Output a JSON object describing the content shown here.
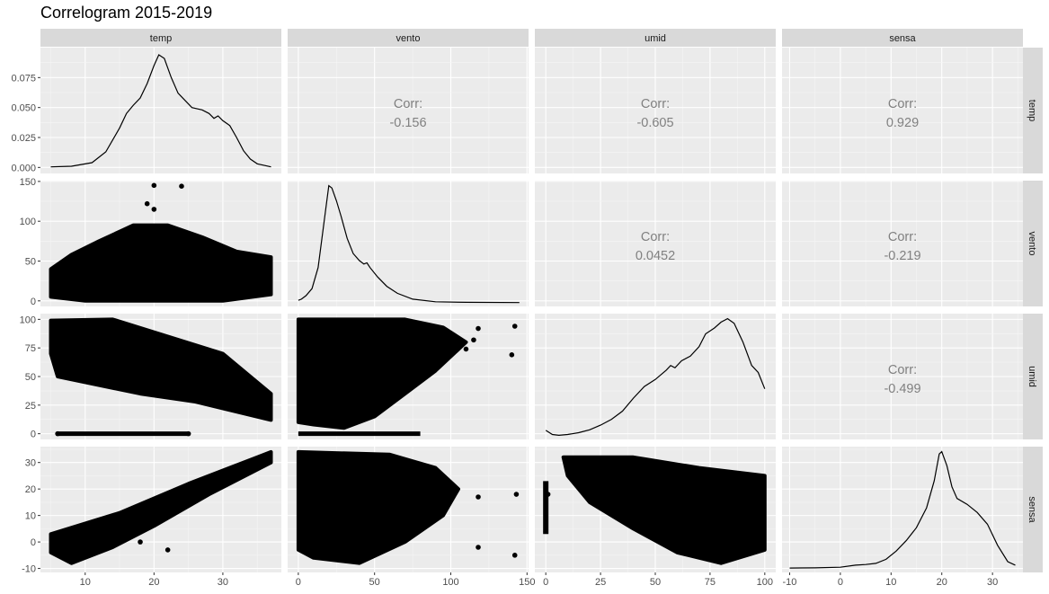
{
  "chart_data": {
    "type": "scatter-matrix",
    "title": "Correlogram 2015-2019",
    "variables": [
      "temp",
      "vento",
      "umid",
      "sensa"
    ],
    "axes": {
      "temp": {
        "range": [
          3.5,
          38.5
        ],
        "ticks": [
          10,
          20,
          30
        ],
        "tick_labels": [
          "10",
          "20",
          "30"
        ]
      },
      "vento": {
        "range": [
          -7,
          151
        ],
        "ticks": [
          0,
          50,
          100,
          150
        ],
        "tick_labels": [
          "0",
          "50",
          "100",
          "150"
        ]
      },
      "umid": {
        "range": [
          -5,
          105
        ],
        "ticks": [
          0,
          25,
          50,
          75,
          100
        ],
        "tick_labels": [
          "0",
          "25",
          "50",
          "75",
          "100"
        ]
      },
      "sensa": {
        "range": [
          -11.5,
          36
        ],
        "ticks": [
          -10,
          0,
          10,
          20,
          30
        ],
        "tick_labels": [
          "-10",
          "0",
          "10",
          "20",
          "30"
        ]
      }
    },
    "density_axis": {
      "range": [
        -0.005,
        0.1
      ],
      "ticks": [
        0,
        0.025,
        0.05,
        0.075
      ],
      "tick_labels": [
        "0.000",
        "0.025",
        "0.050",
        "0.075"
      ]
    },
    "correlations": [
      {
        "x": "vento",
        "y": "temp",
        "label": "Corr:",
        "value": "-0.156"
      },
      {
        "x": "umid",
        "y": "temp",
        "label": "Corr:",
        "value": "-0.605"
      },
      {
        "x": "sensa",
        "y": "temp",
        "label": "Corr:",
        "value": "0.929"
      },
      {
        "x": "umid",
        "y": "vento",
        "label": "Corr:",
        "value": "0.0452"
      },
      {
        "x": "sensa",
        "y": "vento",
        "label": "Corr:",
        "value": "-0.219"
      },
      {
        "x": "sensa",
        "y": "umid",
        "label": "Corr:",
        "value": "-0.499"
      }
    ],
    "densities": {
      "temp": [
        [
          5,
          0.0005
        ],
        [
          8,
          0.001
        ],
        [
          11,
          0.004
        ],
        [
          13,
          0.013
        ],
        [
          14,
          0.023
        ],
        [
          15,
          0.033
        ],
        [
          16,
          0.045
        ],
        [
          17,
          0.052
        ],
        [
          18,
          0.058
        ],
        [
          19,
          0.07
        ],
        [
          20,
          0.085
        ],
        [
          20.7,
          0.094
        ],
        [
          21.5,
          0.091
        ],
        [
          22.5,
          0.075
        ],
        [
          23.5,
          0.062
        ],
        [
          24.5,
          0.056
        ],
        [
          25.5,
          0.05
        ],
        [
          27,
          0.048
        ],
        [
          28,
          0.045
        ],
        [
          28.7,
          0.041
        ],
        [
          29.3,
          0.043
        ],
        [
          30,
          0.039
        ],
        [
          31,
          0.035
        ],
        [
          32,
          0.025
        ],
        [
          33,
          0.014
        ],
        [
          34,
          0.007
        ],
        [
          35,
          0.003
        ],
        [
          37,
          0.0005
        ]
      ],
      "vento": [
        [
          0,
          0.02
        ],
        [
          2,
          0.03
        ],
        [
          5,
          0.06
        ],
        [
          9,
          0.12
        ],
        [
          13,
          0.3
        ],
        [
          16,
          0.6
        ],
        [
          18,
          0.8
        ],
        [
          20,
          1.0
        ],
        [
          22,
          0.98
        ],
        [
          25,
          0.87
        ],
        [
          28,
          0.74
        ],
        [
          32,
          0.55
        ],
        [
          36,
          0.42
        ],
        [
          40,
          0.36
        ],
        [
          43,
          0.33
        ],
        [
          45,
          0.34
        ],
        [
          47,
          0.3
        ],
        [
          52,
          0.22
        ],
        [
          58,
          0.14
        ],
        [
          65,
          0.08
        ],
        [
          75,
          0.03
        ],
        [
          90,
          0.008
        ],
        [
          110,
          0.003
        ],
        [
          145,
          0.001
        ]
      ],
      "umid": [
        [
          0,
          0.045
        ],
        [
          3,
          0.01
        ],
        [
          6,
          0.003
        ],
        [
          10,
          0.01
        ],
        [
          15,
          0.025
        ],
        [
          20,
          0.05
        ],
        [
          25,
          0.09
        ],
        [
          30,
          0.14
        ],
        [
          35,
          0.21
        ],
        [
          40,
          0.32
        ],
        [
          45,
          0.42
        ],
        [
          50,
          0.48
        ],
        [
          55,
          0.56
        ],
        [
          57,
          0.6
        ],
        [
          59,
          0.58
        ],
        [
          62,
          0.64
        ],
        [
          66,
          0.68
        ],
        [
          70,
          0.76
        ],
        [
          73,
          0.87
        ],
        [
          77,
          0.92
        ],
        [
          80,
          0.97
        ],
        [
          83,
          1.0
        ],
        [
          86,
          0.96
        ],
        [
          90,
          0.8
        ],
        [
          94,
          0.6
        ],
        [
          97,
          0.54
        ],
        [
          100,
          0.4
        ]
      ],
      "sensa": [
        [
          -10,
          0.005
        ],
        [
          -5,
          0.007
        ],
        [
          0,
          0.012
        ],
        [
          3,
          0.03
        ],
        [
          5,
          0.035
        ],
        [
          7,
          0.045
        ],
        [
          9,
          0.08
        ],
        [
          11,
          0.15
        ],
        [
          13,
          0.24
        ],
        [
          15,
          0.35
        ],
        [
          17,
          0.52
        ],
        [
          18.5,
          0.75
        ],
        [
          19.5,
          0.98
        ],
        [
          20,
          1.0
        ],
        [
          21,
          0.88
        ],
        [
          22,
          0.7
        ],
        [
          23,
          0.6
        ],
        [
          25,
          0.55
        ],
        [
          27,
          0.48
        ],
        [
          29,
          0.38
        ],
        [
          31,
          0.2
        ],
        [
          33,
          0.06
        ],
        [
          34.5,
          0.03
        ]
      ]
    },
    "scatter": [
      {
        "x": "temp",
        "y": "vento",
        "shape": "cloud",
        "x_extent": [
          5,
          37
        ],
        "y_extent": [
          0,
          100
        ],
        "outliers": [
          [
            20,
            145
          ],
          [
            24,
            144
          ],
          [
            19,
            122
          ],
          [
            20,
            115
          ]
        ]
      },
      {
        "x": "temp",
        "y": "umid",
        "shape": "band",
        "x_extent": [
          5,
          37
        ],
        "y_extent": [
          10,
          100
        ],
        "outliers": [
          [
            6,
            0
          ],
          [
            25,
            0
          ],
          [
            8,
            60
          ],
          [
            9,
            55
          ]
        ]
      },
      {
        "x": "vento",
        "y": "umid",
        "shape": "wedge",
        "x_extent": [
          0,
          120
        ],
        "y_extent": [
          5,
          100
        ],
        "outliers": [
          [
            118,
            92
          ],
          [
            142,
            94
          ],
          [
            140,
            69
          ],
          [
            115,
            82
          ],
          [
            110,
            74
          ]
        ]
      },
      {
        "x": "temp",
        "y": "sensa",
        "shape": "diagonal",
        "x_extent": [
          5,
          37
        ],
        "y_extent": [
          -8,
          34
        ],
        "outliers": [
          [
            18,
            0
          ],
          [
            22,
            -3
          ]
        ]
      },
      {
        "x": "vento",
        "y": "sensa",
        "shape": "wedge",
        "x_extent": [
          0,
          120
        ],
        "y_extent": [
          -8,
          34
        ],
        "outliers": [
          [
            118,
            17
          ],
          [
            143,
            18
          ],
          [
            142,
            -5
          ],
          [
            118,
            -2
          ]
        ]
      },
      {
        "x": "umid",
        "y": "sensa",
        "shape": "band",
        "x_extent": [
          0,
          100
        ],
        "y_extent": [
          -8,
          34
        ],
        "outliers": [
          [
            0,
            22
          ],
          [
            0,
            4
          ],
          [
            1,
            18
          ]
        ]
      }
    ],
    "grid": true,
    "legend": "none"
  }
}
